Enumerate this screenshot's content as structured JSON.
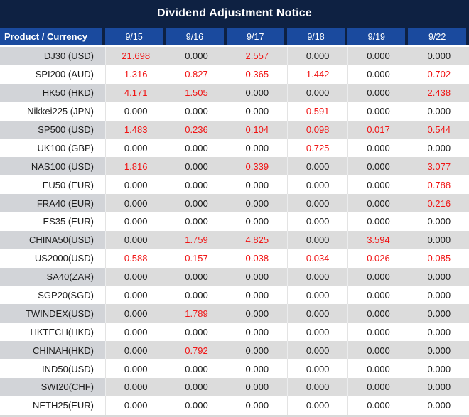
{
  "title": "Dividend Adjustment Notice",
  "table": {
    "header": [
      "Product / Currency",
      "9/15",
      "9/16",
      "9/17",
      "9/18",
      "9/19",
      "9/22"
    ],
    "rows": [
      {
        "product": "DJ30 (USD)",
        "values": [
          "21.698",
          "0.000",
          "2.557",
          "0.000",
          "0.000",
          "0.000"
        ]
      },
      {
        "product": "SPI200 (AUD)",
        "values": [
          "1.316",
          "0.827",
          "0.365",
          "1.442",
          "0.000",
          "0.702"
        ]
      },
      {
        "product": "HK50 (HKD)",
        "values": [
          "4.171",
          "1.505",
          "0.000",
          "0.000",
          "0.000",
          "2.438"
        ]
      },
      {
        "product": "Nikkei225 (JPN)",
        "values": [
          "0.000",
          "0.000",
          "0.000",
          "0.591",
          "0.000",
          "0.000"
        ]
      },
      {
        "product": "SP500 (USD)",
        "values": [
          "1.483",
          "0.236",
          "0.104",
          "0.098",
          "0.017",
          "0.544"
        ]
      },
      {
        "product": "UK100 (GBP)",
        "values": [
          "0.000",
          "0.000",
          "0.000",
          "0.725",
          "0.000",
          "0.000"
        ]
      },
      {
        "product": "NAS100 (USD)",
        "values": [
          "1.816",
          "0.000",
          "0.339",
          "0.000",
          "0.000",
          "3.077"
        ]
      },
      {
        "product": "EU50 (EUR)",
        "values": [
          "0.000",
          "0.000",
          "0.000",
          "0.000",
          "0.000",
          "0.788"
        ]
      },
      {
        "product": "FRA40 (EUR)",
        "values": [
          "0.000",
          "0.000",
          "0.000",
          "0.000",
          "0.000",
          "0.216"
        ]
      },
      {
        "product": "ES35 (EUR)",
        "values": [
          "0.000",
          "0.000",
          "0.000",
          "0.000",
          "0.000",
          "0.000"
        ]
      },
      {
        "product": "CHINA50(USD)",
        "values": [
          "0.000",
          "1.759",
          "4.825",
          "0.000",
          "3.594",
          "0.000"
        ]
      },
      {
        "product": "US2000(USD)",
        "values": [
          "0.588",
          "0.157",
          "0.038",
          "0.034",
          "0.026",
          "0.085"
        ]
      },
      {
        "product": "SA40(ZAR)",
        "values": [
          "0.000",
          "0.000",
          "0.000",
          "0.000",
          "0.000",
          "0.000"
        ]
      },
      {
        "product": "SGP20(SGD)",
        "values": [
          "0.000",
          "0.000",
          "0.000",
          "0.000",
          "0.000",
          "0.000"
        ]
      },
      {
        "product": "TWINDEX(USD)",
        "values": [
          "0.000",
          "1.789",
          "0.000",
          "0.000",
          "0.000",
          "0.000"
        ]
      },
      {
        "product": "HKTECH(HKD)",
        "values": [
          "0.000",
          "0.000",
          "0.000",
          "0.000",
          "0.000",
          "0.000"
        ]
      },
      {
        "product": "CHINAH(HKD)",
        "values": [
          "0.000",
          "0.792",
          "0.000",
          "0.000",
          "0.000",
          "0.000"
        ]
      },
      {
        "product": "IND50(USD)",
        "values": [
          "0.000",
          "0.000",
          "0.000",
          "0.000",
          "0.000",
          "0.000"
        ]
      },
      {
        "product": "SWI20(CHF)",
        "values": [
          "0.000",
          "0.000",
          "0.000",
          "0.000",
          "0.000",
          "0.000"
        ]
      },
      {
        "product": "NETH25(EUR)",
        "values": [
          "0.000",
          "0.000",
          "0.000",
          "0.000",
          "0.000",
          "0.000"
        ]
      }
    ]
  },
  "colors": {
    "title_bg": "#0e2142",
    "header_bg": "#1a4a9e",
    "stripe_bg": "#dcdcdc",
    "stripe_product_bg": "#d2d4d8",
    "nonzero_value": "#f01414",
    "zero_value": "#1c1c1c"
  }
}
